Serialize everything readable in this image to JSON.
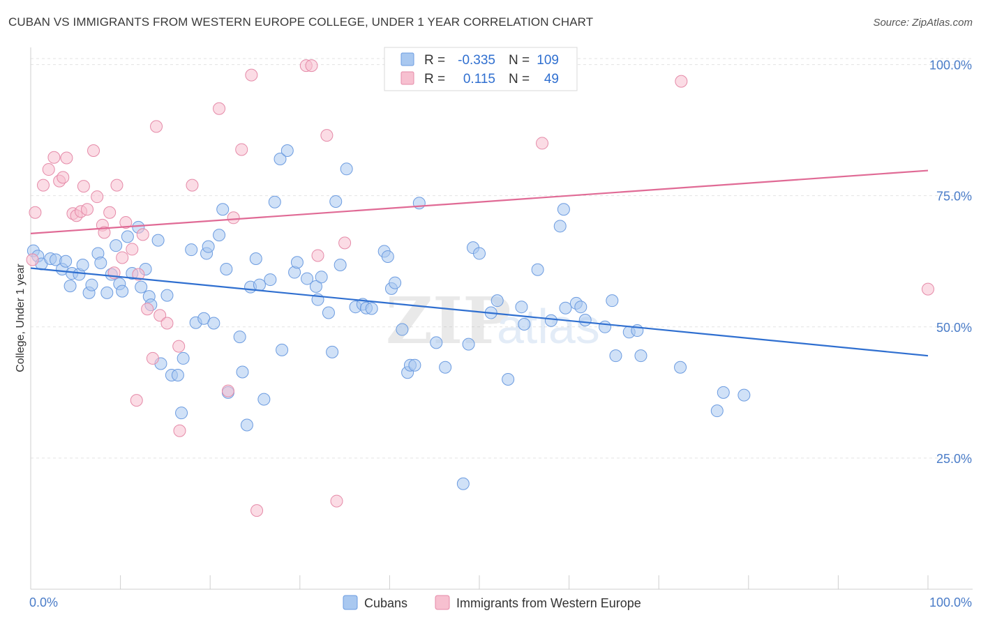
{
  "header": {
    "title": "CUBAN VS IMMIGRANTS FROM WESTERN EUROPE COLLEGE, UNDER 1 YEAR CORRELATION CHART",
    "source": "Source: ZipAtlas.com"
  },
  "watermark": {
    "zip": "ZIP",
    "atlas": "atlas"
  },
  "stats_legend": {
    "rows": [
      {
        "r_label": "R =",
        "r_value": "-0.335",
        "n_label": "N =",
        "n_value": "109",
        "color": "#a9c8f0",
        "edge": "#6b9be0"
      },
      {
        "r_label": "R =",
        "r_value": "0.115",
        "n_label": "N =",
        "n_value": "49",
        "color": "#f7c0d0",
        "edge": "#e58aa8"
      }
    ]
  },
  "chart_data": {
    "type": "scatter",
    "title": "CUBAN VS IMMIGRANTS FROM WESTERN EUROPE COLLEGE, UNDER 1 YEAR CORRELATION CHART",
    "xlabel": "",
    "ylabel": "College, Under 1 year",
    "xlim": [
      0,
      100
    ],
    "ylim": [
      0,
      103
    ],
    "x_tick_labels": [
      {
        "value": 0,
        "label": "0.0%"
      },
      {
        "value": 100,
        "label": "100.0%"
      }
    ],
    "y_tick_labels": [
      {
        "value": 25,
        "label": "25.0%"
      },
      {
        "value": 50,
        "label": "50.0%"
      },
      {
        "value": 75,
        "label": "75.0%"
      },
      {
        "value": 100,
        "label": "100.0%"
      }
    ],
    "grid": true,
    "legend_position": "bottom",
    "series": [
      {
        "name": "Cubans",
        "color": "#a9c8f0",
        "edge": "#6b9be0",
        "trend_color": "#2f6fd0",
        "trend": [
          [
            0,
            61.2
          ],
          [
            100,
            44.5
          ]
        ],
        "points": [
          [
            0.3,
            64.5
          ],
          [
            0.8,
            63.5
          ],
          [
            1.2,
            62.0
          ],
          [
            2.2,
            63.0
          ],
          [
            2.8,
            62.8
          ],
          [
            3.5,
            61.0
          ],
          [
            3.9,
            62.5
          ],
          [
            4.4,
            57.8
          ],
          [
            4.6,
            60.2
          ],
          [
            5.4,
            60.0
          ],
          [
            5.8,
            61.8
          ],
          [
            6.5,
            56.5
          ],
          [
            6.8,
            58.0
          ],
          [
            7.5,
            64.0
          ],
          [
            7.8,
            62.2
          ],
          [
            8.5,
            56.5
          ],
          [
            9.0,
            60.0
          ],
          [
            9.5,
            65.5
          ],
          [
            9.9,
            58.2
          ],
          [
            10.2,
            56.8
          ],
          [
            10.8,
            67.2
          ],
          [
            11.3,
            60.2
          ],
          [
            12.0,
            69.0
          ],
          [
            12.3,
            57.6
          ],
          [
            12.8,
            61.0
          ],
          [
            13.2,
            55.8
          ],
          [
            13.4,
            54.2
          ],
          [
            14.2,
            66.5
          ],
          [
            14.5,
            43.0
          ],
          [
            15.2,
            56.0
          ],
          [
            15.7,
            40.8
          ],
          [
            16.4,
            40.8
          ],
          [
            16.8,
            33.6
          ],
          [
            17.0,
            44.0
          ],
          [
            17.9,
            64.7
          ],
          [
            18.4,
            50.8
          ],
          [
            19.3,
            51.6
          ],
          [
            19.6,
            64.0
          ],
          [
            19.8,
            65.3
          ],
          [
            20.4,
            50.7
          ],
          [
            21.0,
            67.5
          ],
          [
            21.4,
            72.4
          ],
          [
            21.8,
            61.0
          ],
          [
            22.0,
            37.5
          ],
          [
            23.3,
            48.1
          ],
          [
            23.6,
            41.4
          ],
          [
            24.1,
            31.3
          ],
          [
            24.5,
            57.6
          ],
          [
            25.1,
            63.0
          ],
          [
            25.5,
            58.0
          ],
          [
            26.0,
            36.2
          ],
          [
            26.7,
            59.0
          ],
          [
            27.2,
            73.8
          ],
          [
            27.8,
            82.0
          ],
          [
            28.0,
            45.6
          ],
          [
            28.6,
            83.6
          ],
          [
            29.4,
            60.4
          ],
          [
            29.7,
            62.3
          ],
          [
            30.8,
            59.2
          ],
          [
            31.8,
            57.7
          ],
          [
            32.0,
            55.2
          ],
          [
            32.4,
            59.5
          ],
          [
            33.2,
            52.7
          ],
          [
            33.6,
            45.2
          ],
          [
            34.0,
            73.9
          ],
          [
            34.5,
            61.8
          ],
          [
            35.2,
            80.1
          ],
          [
            36.2,
            53.8
          ],
          [
            37.0,
            54.3
          ],
          [
            37.4,
            53.6
          ],
          [
            38.0,
            53.5
          ],
          [
            39.4,
            64.4
          ],
          [
            39.8,
            63.4
          ],
          [
            40.2,
            57.3
          ],
          [
            40.6,
            58.4
          ],
          [
            41.4,
            49.5
          ],
          [
            42.0,
            41.3
          ],
          [
            42.3,
            42.7
          ],
          [
            42.8,
            42.7
          ],
          [
            43.3,
            73.6
          ],
          [
            45.2,
            47.0
          ],
          [
            46.2,
            42.3
          ],
          [
            48.2,
            20.1
          ],
          [
            48.8,
            46.7
          ],
          [
            49.3,
            65.1
          ],
          [
            50.0,
            64.0
          ],
          [
            51.3,
            52.7
          ],
          [
            52.0,
            55.0
          ],
          [
            53.2,
            40.0
          ],
          [
            54.7,
            53.8
          ],
          [
            55.0,
            50.5
          ],
          [
            56.5,
            60.9
          ],
          [
            58.0,
            51.2
          ],
          [
            59.0,
            69.2
          ],
          [
            59.4,
            72.4
          ],
          [
            59.6,
            53.6
          ],
          [
            60.8,
            54.5
          ],
          [
            61.3,
            53.8
          ],
          [
            61.8,
            51.3
          ],
          [
            64.0,
            50.0
          ],
          [
            64.8,
            55.0
          ],
          [
            65.2,
            44.5
          ],
          [
            66.7,
            49.0
          ],
          [
            67.6,
            49.3
          ],
          [
            68.0,
            44.5
          ],
          [
            72.4,
            42.3
          ],
          [
            76.5,
            34.0
          ],
          [
            77.2,
            37.5
          ],
          [
            79.5,
            37.0
          ]
        ]
      },
      {
        "name": "Immigrants from Western Europe",
        "color": "#f7c0d0",
        "edge": "#e58aa8",
        "trend_color": "#e06a95",
        "trend": [
          [
            0,
            67.8
          ],
          [
            100,
            79.8
          ]
        ],
        "points": [
          [
            0.2,
            62.8
          ],
          [
            0.5,
            71.8
          ],
          [
            1.4,
            77.0
          ],
          [
            2.0,
            80.0
          ],
          [
            2.6,
            82.3
          ],
          [
            3.2,
            77.8
          ],
          [
            3.6,
            78.5
          ],
          [
            4.0,
            82.2
          ],
          [
            4.7,
            71.6
          ],
          [
            5.1,
            71.2
          ],
          [
            5.6,
            72.0
          ],
          [
            5.9,
            76.8
          ],
          [
            6.3,
            72.4
          ],
          [
            7.0,
            83.6
          ],
          [
            7.4,
            74.8
          ],
          [
            8.0,
            69.4
          ],
          [
            8.2,
            68.0
          ],
          [
            8.8,
            71.8
          ],
          [
            9.3,
            60.3
          ],
          [
            9.6,
            77.0
          ],
          [
            10.2,
            63.2
          ],
          [
            10.6,
            69.9
          ],
          [
            11.3,
            64.8
          ],
          [
            11.8,
            36.0
          ],
          [
            12.5,
            67.6
          ],
          [
            13.0,
            53.4
          ],
          [
            13.6,
            44.0
          ],
          [
            14.0,
            88.2
          ],
          [
            14.4,
            52.2
          ],
          [
            15.2,
            50.7
          ],
          [
            16.5,
            46.3
          ],
          [
            16.6,
            30.2
          ],
          [
            18.0,
            77.0
          ],
          [
            21.0,
            91.6
          ],
          [
            22.6,
            70.8
          ],
          [
            22.0,
            37.8
          ],
          [
            23.5,
            83.8
          ],
          [
            24.6,
            98.0
          ],
          [
            25.2,
            15.0
          ],
          [
            30.7,
            99.8
          ],
          [
            31.3,
            99.8
          ],
          [
            32.0,
            63.6
          ],
          [
            33.0,
            86.5
          ],
          [
            34.1,
            16.8
          ],
          [
            57.0,
            85.0
          ],
          [
            72.5,
            96.8
          ],
          [
            100.0,
            57.2
          ],
          [
            35.0,
            66.0
          ],
          [
            12.0,
            60.0
          ]
        ]
      }
    ]
  },
  "bottom_legend": {
    "items": [
      {
        "label": "Cubans",
        "color": "#a9c8f0",
        "edge": "#6b9be0"
      },
      {
        "label": "Immigrants from Western Europe",
        "color": "#f7c0d0",
        "edge": "#e58aa8"
      }
    ]
  }
}
